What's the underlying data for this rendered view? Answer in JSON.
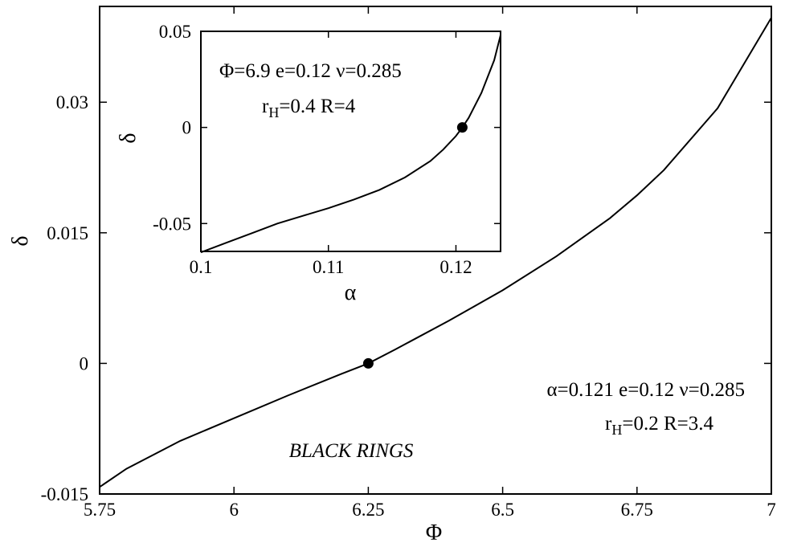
{
  "chart_data": [
    {
      "type": "line",
      "xlabel": "Φ",
      "ylabel": "δ",
      "xlim": [
        5.75,
        7.0
      ],
      "ylim": [
        -0.015,
        0.041
      ],
      "xticks": [
        5.75,
        6.0,
        6.25,
        6.5,
        6.75,
        7.0
      ],
      "xtick_labels": [
        "5.75",
        "6",
        "6.25",
        "6.5",
        "6.75",
        "7"
      ],
      "yticks": [
        -0.015,
        0.0,
        0.015,
        0.03
      ],
      "ytick_labels": [
        "-0.015",
        "0",
        "0.015",
        "0.03"
      ],
      "grid": false,
      "series": [
        {
          "x": [
            5.75,
            5.8,
            5.9,
            6.0,
            6.1,
            6.2,
            6.25,
            6.3,
            6.4,
            6.5,
            6.6,
            6.7,
            6.75,
            6.8,
            6.9,
            7.0
          ],
          "y": [
            -0.0142,
            -0.0121,
            -0.0089,
            -0.0063,
            -0.0037,
            -0.0012,
            0.0,
            0.0016,
            0.0049,
            0.0084,
            0.0123,
            0.0167,
            0.0193,
            0.0222,
            0.0293,
            0.0397
          ]
        }
      ],
      "marker": {
        "x": 6.25,
        "y": 0.0
      },
      "annotations": {
        "params_line1": "α=0.121 e=0.12 ν=0.285",
        "params_line2_r": "r",
        "params_line2_sub": "H",
        "params_line2_rest": "=0.2 R=3.4",
        "label": "BLACK RINGS"
      }
    },
    {
      "type": "line",
      "inset": true,
      "xlabel": "α",
      "ylabel": "δ",
      "xlim": [
        0.1,
        0.1235
      ],
      "ylim": [
        -0.0645,
        0.05
      ],
      "xticks": [
        0.1,
        0.11,
        0.12
      ],
      "xtick_labels": [
        "0.1",
        "0.11",
        "0.12"
      ],
      "yticks": [
        -0.05,
        0.0,
        0.05
      ],
      "ytick_labels": [
        "-0.05",
        "0",
        "0.05"
      ],
      "grid": false,
      "series": [
        {
          "x": [
            0.1,
            0.102,
            0.104,
            0.106,
            0.108,
            0.11,
            0.112,
            0.114,
            0.116,
            0.118,
            0.119,
            0.12,
            0.1205,
            0.121,
            0.122,
            0.123,
            0.1235
          ],
          "y": [
            -0.065,
            -0.06,
            -0.055,
            -0.05,
            -0.046,
            -0.042,
            -0.0375,
            -0.0325,
            -0.026,
            -0.0175,
            -0.0115,
            -0.0045,
            0.0,
            0.005,
            0.018,
            0.035,
            0.048
          ]
        }
      ],
      "marker": {
        "x": 0.1205,
        "y": 0.0
      },
      "annotations": {
        "params_line1": "Φ=6.9 e=0.12 ν=0.285",
        "params_line2_r": "r",
        "params_line2_sub": "H",
        "params_line2_rest": "=0.4 R=4"
      }
    }
  ]
}
